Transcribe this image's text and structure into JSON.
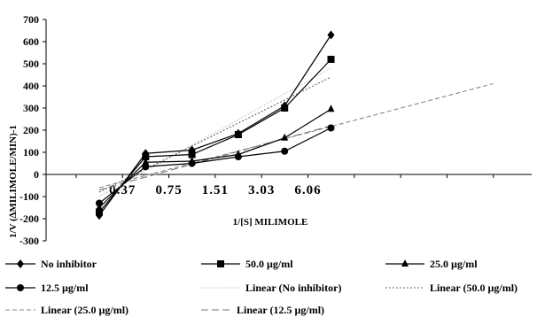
{
  "chart_data": {
    "type": "line",
    "categories": [
      "",
      "0.37",
      "0.75",
      "1.51",
      "3.03",
      "6.06"
    ],
    "xlabel": "1/[S] MILIMOLE",
    "ylabel": "1/V (∆MILIMOLE/MIN)-1",
    "ylim": [
      -300,
      700
    ],
    "yticks": [
      -300,
      -200,
      -100,
      0,
      100,
      200,
      300,
      400,
      500,
      600,
      700
    ],
    "grid": false,
    "legend_position": "bottom",
    "series": [
      {
        "name": "No inhibitor",
        "marker": "diamond",
        "color": "#000000",
        "values": [
          -185,
          95,
          110,
          185,
          310,
          630
        ]
      },
      {
        "name": "50.0 µg/ml",
        "marker": "square",
        "color": "#000000",
        "values": [
          -170,
          80,
          90,
          180,
          300,
          520
        ]
      },
      {
        "name": "25.0 µg/ml",
        "marker": "triangle",
        "color": "#000000",
        "values": [
          -150,
          55,
          60,
          90,
          165,
          295
        ]
      },
      {
        "name": "12.5 µg/ml",
        "marker": "circle",
        "color": "#000000",
        "values": [
          -130,
          35,
          50,
          80,
          105,
          210
        ]
      }
    ],
    "trendlines": [
      {
        "name": "Linear (No inhibitor)",
        "dash": "1,2",
        "color": "#aaaaaa",
        "x_range": [
          0,
          5
        ],
        "values": [
          -100,
          480
        ]
      },
      {
        "name": "Linear (50.0 µg/ml)",
        "dash": "2,2",
        "color": "#666666",
        "x_range": [
          0,
          5
        ],
        "values": [
          -80,
          440
        ]
      },
      {
        "name": "Linear (25.0 µg/ml)",
        "dash": "5,3",
        "color": "#888888",
        "x_range": [
          0,
          8.5
        ],
        "values": [
          -60,
          410
        ]
      },
      {
        "name": "Linear (12.5 µg/ml)",
        "dash": "8,4",
        "color": "#777777",
        "x_range": [
          0,
          5
        ],
        "values": [
          -70,
          220
        ]
      }
    ]
  }
}
